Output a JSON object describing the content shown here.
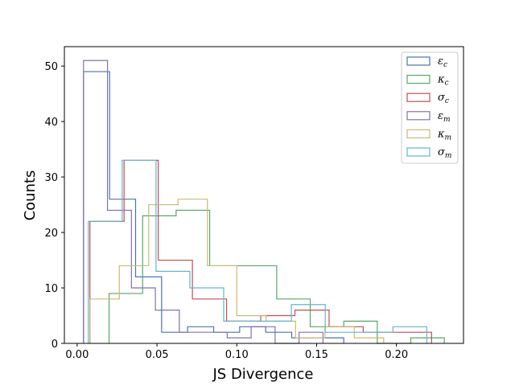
{
  "chart_data": {
    "type": "histogram",
    "xlabel": "JS Divergence",
    "ylabel": "Counts",
    "xlim": [
      -0.008,
      0.242
    ],
    "ylim": [
      0,
      53.5
    ],
    "xticks": [
      "0.00",
      "0.05",
      "0.10",
      "0.15",
      "0.20"
    ],
    "yticks": [
      "0",
      "10",
      "20",
      "30",
      "40",
      "50"
    ],
    "legend_position": "top-right",
    "histtype": "step",
    "series": [
      {
        "name": "εc",
        "symbol": "ε",
        "subscript": "c",
        "color": "#4c72b0",
        "edges": [
          0.004,
          0.0203,
          0.0366,
          0.0529,
          0.0692,
          0.0855,
          0.1018,
          0.1181,
          0.1344,
          0.1507,
          0.167
        ],
        "counts": [
          49,
          26,
          12,
          2,
          3,
          2,
          3,
          2,
          1,
          1
        ]
      },
      {
        "name": "κc",
        "symbol": "κ",
        "subscript": "c",
        "color": "#55a868",
        "edges": [
          0.02,
          0.041,
          0.062,
          0.083,
          0.104,
          0.125,
          0.146,
          0.167,
          0.188,
          0.209,
          0.23
        ],
        "counts": [
          9,
          23,
          24,
          14,
          14,
          8,
          3,
          4,
          0,
          1
        ]
      },
      {
        "name": "σc",
        "symbol": "σ",
        "subscript": "c",
        "color": "#c44e52",
        "edges": [
          0.008,
          0.0294,
          0.0508,
          0.0722,
          0.0936,
          0.115,
          0.1364,
          0.1578,
          0.1792,
          0.2006,
          0.222
        ],
        "counts": [
          22,
          33,
          15,
          8,
          4,
          5,
          6,
          3,
          2,
          2
        ]
      },
      {
        "name": "εm",
        "symbol": "ε",
        "subscript": "m",
        "color": "#8172b2",
        "edges": [
          0.004,
          0.019,
          0.034,
          0.049,
          0.064,
          0.079,
          0.094,
          0.109,
          0.124,
          0.139,
          0.154
        ],
        "counts": [
          51,
          24,
          10,
          6,
          2,
          2,
          1,
          3,
          0,
          2
        ]
      },
      {
        "name": "κm",
        "symbol": "κ",
        "subscript": "m",
        "color": "#ccb974",
        "edges": [
          0.008,
          0.0264,
          0.0448,
          0.0632,
          0.0816,
          0.1,
          0.1184,
          0.1368,
          0.1552,
          0.1736,
          0.192
        ],
        "counts": [
          8,
          14,
          25,
          26,
          14,
          5,
          4,
          1,
          3,
          1
        ]
      },
      {
        "name": "σm",
        "symbol": "σ",
        "subscript": "m",
        "color": "#64b5cd",
        "edges": [
          0.007,
          0.0282,
          0.0494,
          0.0706,
          0.0918,
          0.113,
          0.1342,
          0.1554,
          0.1766,
          0.1978,
          0.219
        ],
        "counts": [
          22,
          33,
          13,
          10,
          4,
          4,
          7,
          2,
          2,
          3
        ]
      }
    ]
  }
}
